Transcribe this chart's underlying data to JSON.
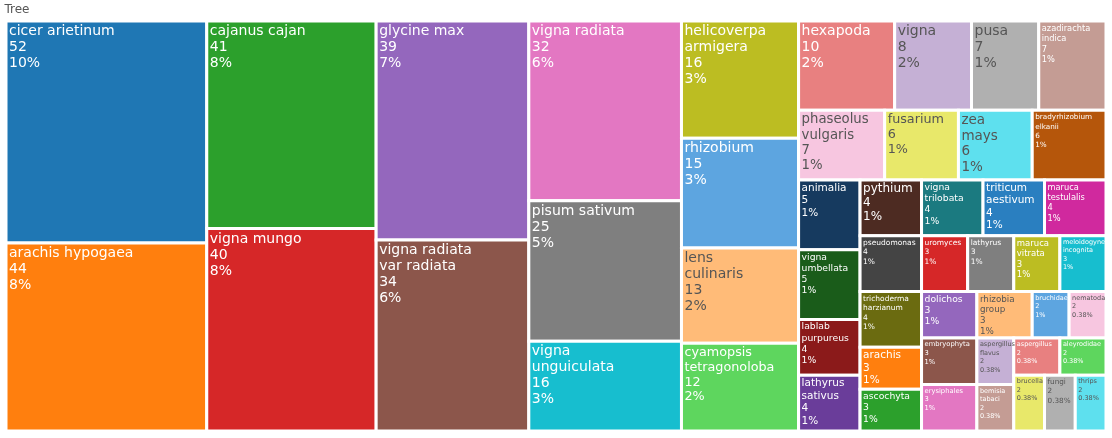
{
  "chart_data": {
    "type": "other",
    "title": "Tree",
    "categories": [
      "cicer arietinum",
      "arachis hypogaea",
      "cajanus cajan",
      "vigna mungo",
      "glycine max",
      "vigna radiata var  radiata",
      "vigna radiata",
      "pisum sativum",
      "vigna unguiculata",
      "helicoverpa armigera",
      "rhizobium",
      "lens culinaris",
      "cyamopsis tetragonoloba",
      "hexapoda",
      "vigna",
      "pusa",
      "azadirachta indica",
      "phaseolus vulgaris",
      "fusarium",
      "zea mays",
      "bradyrhizobium elkanii",
      "animalia",
      "vigna umbellata",
      "lablab purpureus",
      "lathyrus sativus",
      "pythium",
      "vigna trilobata",
      "triticum aestivum",
      "maruca testulalis",
      "pseudomonas",
      "trichoderma harzianum",
      "arachis",
      "ascochyta",
      "uromyces",
      "lathyrus",
      "maruca vitrata",
      "meloidogyne incognita",
      "dolichos",
      "embryophyta",
      "erysiphales",
      "rhizobia group",
      "bruchidae",
      "nematoda",
      "aspergillus flavus",
      "bemisia tabaci",
      "aspergillus",
      "aleyrodidae",
      "brucella",
      "fungi",
      "thrips"
    ],
    "values": [
      52,
      44,
      41,
      40,
      39,
      34,
      32,
      25,
      16,
      16,
      15,
      13,
      12,
      10,
      8,
      7,
      7,
      7,
      6,
      6,
      6,
      5,
      5,
      4,
      4,
      4,
      4,
      4,
      4,
      4,
      4,
      3,
      3,
      3,
      3,
      3,
      3,
      3,
      3,
      3,
      3,
      2,
      2,
      2,
      2,
      2,
      2,
      2,
      2,
      2
    ],
    "data_labels": true,
    "annotations": [
      {
        "text": "10%",
        "x": "cicer arietinum"
      },
      {
        "text": "8%",
        "x": "arachis hypogaea"
      },
      {
        "text": "8%",
        "x": "cajanus cajan"
      },
      {
        "text": "8%",
        "x": "vigna mungo"
      },
      {
        "text": "7%",
        "x": "glycine max"
      },
      {
        "text": "6%",
        "x": "vigna radiata var  radiata"
      },
      {
        "text": "6%",
        "x": "vigna radiata"
      },
      {
        "text": "5%",
        "x": "pisum sativum"
      },
      {
        "text": "3%",
        "x": "vigna unguiculata"
      },
      {
        "text": "3%",
        "x": "helicoverpa armigera"
      },
      {
        "text": "3%",
        "x": "rhizobium"
      },
      {
        "text": "2%",
        "x": "lens culinaris"
      },
      {
        "text": "2%",
        "x": "cyamopsis tetragonoloba"
      },
      {
        "text": "2%",
        "x": "hexapoda"
      },
      {
        "text": "2%",
        "x": "vigna"
      },
      {
        "text": "1%",
        "x": "pusa"
      },
      {
        "text": "1%",
        "x": "azadirachta indica"
      },
      {
        "text": "1%",
        "x": "phaseolus vulgaris"
      },
      {
        "text": "1%",
        "x": "fusarium"
      },
      {
        "text": "1%",
        "x": "zea mays"
      },
      {
        "text": "1%",
        "x": "bradyrhizobium elkanii"
      },
      {
        "text": "1%",
        "x": "animalia"
      },
      {
        "text": "1%",
        "x": "vigna umbellata"
      },
      {
        "text": "1%",
        "x": "lablab purpureus"
      },
      {
        "text": "1%",
        "x": "lathyrus sativus"
      },
      {
        "text": "1%",
        "x": "pythium"
      },
      {
        "text": "1%",
        "x": "vigna trilobata"
      },
      {
        "text": "1%",
        "x": "triticum aestivum"
      },
      {
        "text": "1%",
        "x": "maruca testulalis"
      },
      {
        "text": "1%",
        "x": "pseudomonas"
      },
      {
        "text": "1%",
        "x": "trichoderma harzianum"
      },
      {
        "text": "1%",
        "x": "arachis"
      },
      {
        "text": "1%",
        "x": "ascochyta"
      },
      {
        "text": "1%",
        "x": "uromyces"
      },
      {
        "text": "1%",
        "x": "lathyrus"
      },
      {
        "text": "1%",
        "x": "maruca vitrata"
      },
      {
        "text": "1%",
        "x": "meloidogyne incognita"
      },
      {
        "text": "1%",
        "x": "dolichos"
      },
      {
        "text": "1%",
        "x": "embryophyta"
      },
      {
        "text": "1%",
        "x": "erysiphales"
      },
      {
        "text": "1%",
        "x": "rhizobia group"
      },
      {
        "text": "1%",
        "x": "bruchidae"
      },
      {
        "text": "0.38%",
        "x": "aspergillus"
      },
      {
        "text": "0.38%",
        "x": "aspergillus flavus"
      },
      {
        "text": "0.38%",
        "x": "bemisia tabaci"
      },
      {
        "text": "0.38%",
        "x": "nematoda"
      },
      {
        "text": "0.38%",
        "x": "aleyrodidae"
      },
      {
        "text": "0.38%",
        "x": "brucella"
      },
      {
        "text": "0.38%",
        "x": "fungi"
      },
      {
        "text": "0.38%",
        "x": "thrips"
      }
    ],
    "colors": [
      "#1f77b4",
      "#ff7f0e",
      "#2ca02c",
      "#d62728",
      "#9467bd",
      "#8c564b",
      "#e377c2",
      "#7f7f7f",
      "#17becf",
      "#bcbd22",
      "#5da5e0",
      "#ffbb78",
      "#5ed65e",
      "#e88080",
      "#c5b0d5",
      "#b0b0b0",
      "#c49c94",
      "#f7c6e0",
      "#e8e86a",
      "#5ee0ee",
      "#b5560b",
      "#163a5f",
      "#1a5c1a",
      "#8b1a1a",
      "#6a3d9a",
      "#4d2b22",
      "#1b7a80",
      "#2a7fc0",
      "#d0299e",
      "#444444",
      "#6b6b10",
      "#ff7f0e",
      "#2ca02c",
      "#d62728",
      "#7f7f7f",
      "#bcbd22",
      "#17becf",
      "#9467bd",
      "#8c564b",
      "#e377c2",
      "#ffbb78",
      "#5da5e0",
      "#f7c6e0",
      "#c5b0d5",
      "#c49c94",
      "#e88080",
      "#5ed65e",
      "#e8e86a",
      "#b0b0b0",
      "#5ee0ee"
    ]
  }
}
